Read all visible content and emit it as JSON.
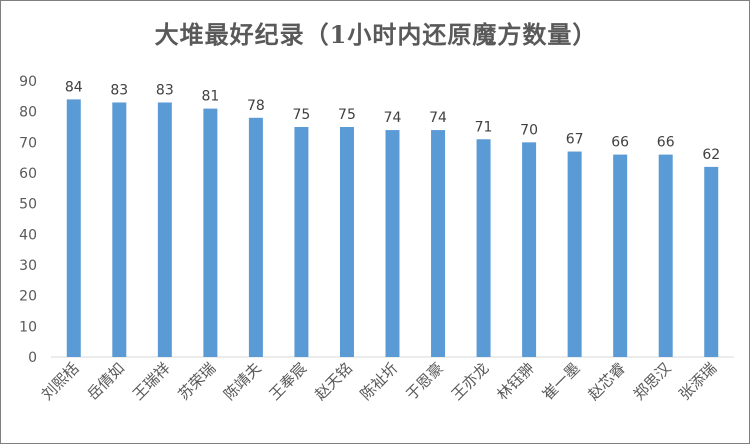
{
  "chart_data": {
    "type": "bar",
    "title": "大堆最好纪录（1小时内还原魔方数量）",
    "categories": [
      "刘熙栝",
      "岳倩如",
      "王瑞祥",
      "苏荣瑞",
      "陈靖夫",
      "王奉宸",
      "赵天铭",
      "陈祉圻",
      "于恩豪",
      "王亦龙",
      "林钰翀",
      "崔一墨",
      "赵芯睿",
      "郑思汉",
      "张添瑞"
    ],
    "series": [
      {
        "values": [
          84,
          83,
          83,
          81,
          78,
          75,
          75,
          74,
          74,
          71,
          70,
          67,
          66,
          66,
          62
        ]
      }
    ],
    "xlabel": "",
    "ylabel": "",
    "ylim": [
      0,
      90
    ],
    "yticks": [
      0,
      10,
      20,
      30,
      40,
      50,
      60,
      70,
      80,
      90
    ],
    "grid": false,
    "legend": "none",
    "data_labels": true,
    "bar_color": "#5b9bd5",
    "axis_color": "#d9d9d9",
    "text_color": "#595959"
  }
}
